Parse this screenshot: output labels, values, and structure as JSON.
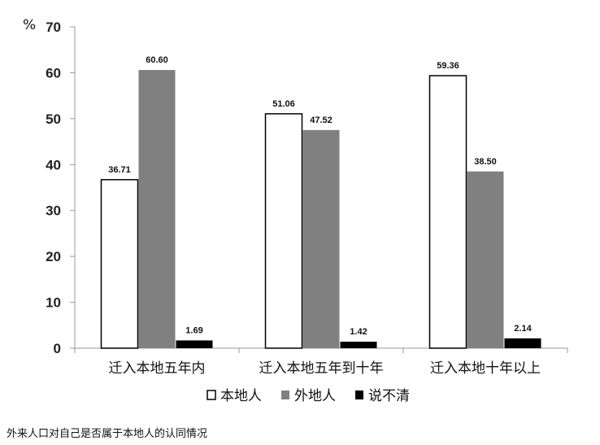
{
  "chart_data": {
    "type": "bar",
    "unit_label": "%",
    "categories": [
      "迁入本地五年内",
      "迁入本地五年到十年",
      "迁入本地十年以上"
    ],
    "series": [
      {
        "name": "本地人",
        "values": [
          36.71,
          51.06,
          59.36
        ],
        "labels": [
          "36.71",
          "51.06",
          "59.36"
        ],
        "color": "#ffffff"
      },
      {
        "name": "外地人",
        "values": [
          60.6,
          47.52,
          38.5
        ],
        "labels": [
          "60.60",
          "47.52",
          "38.50"
        ],
        "color": "#808080"
      },
      {
        "name": "说不清",
        "values": [
          1.69,
          1.42,
          2.14
        ],
        "labels": [
          "1.69",
          "1.42",
          "2.14"
        ],
        "color": "#000000"
      }
    ],
    "ylim": [
      0,
      70
    ],
    "yticks": [
      0,
      10,
      20,
      30,
      40,
      50,
      60,
      70
    ],
    "grid": false,
    "legend_position": "bottom"
  },
  "caption": "外来人口对自己是否属于本地人的认同情况"
}
